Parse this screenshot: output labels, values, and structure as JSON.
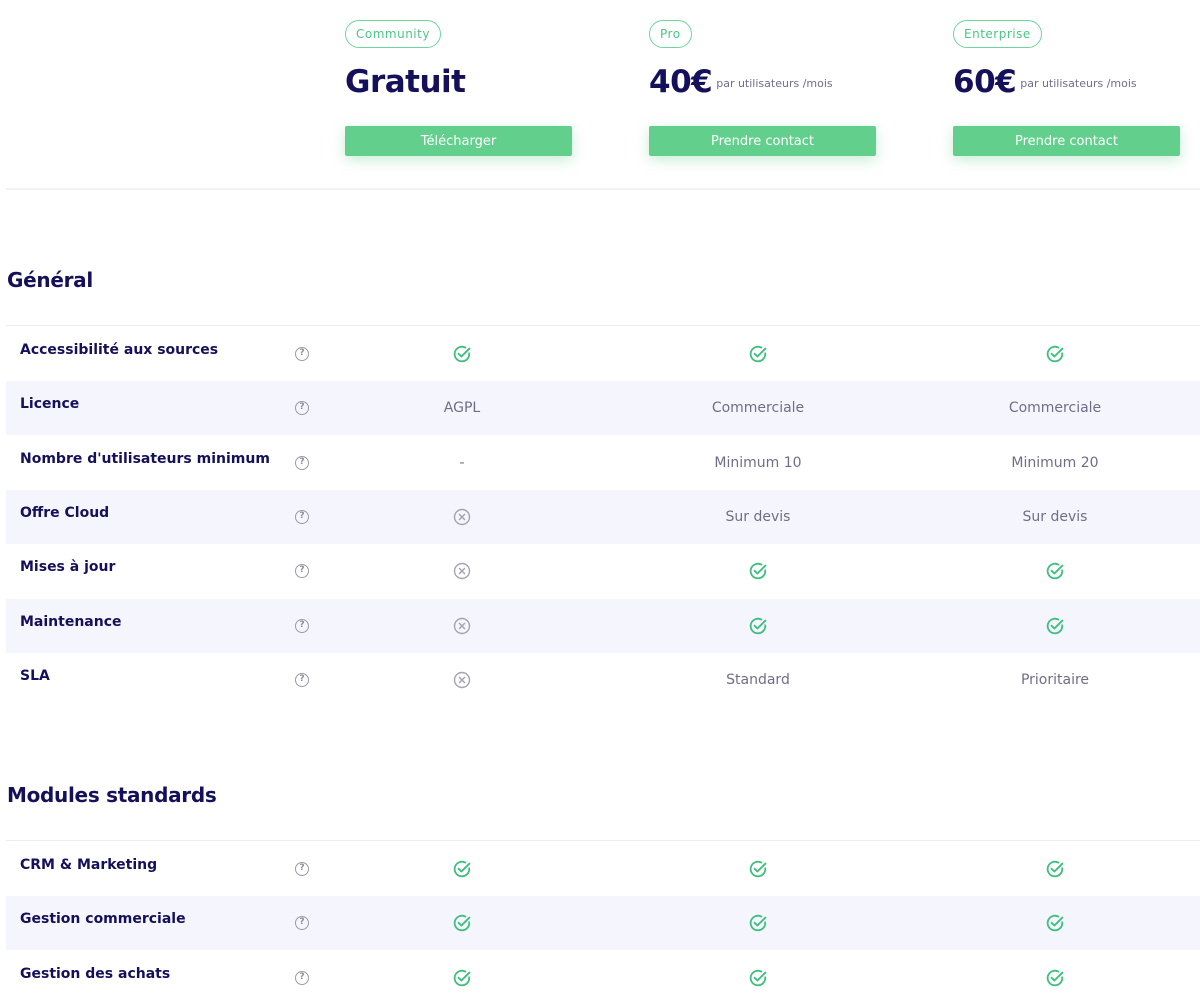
{
  "plans": [
    {
      "badge": "Community",
      "price": "Gratuit",
      "period": "",
      "button": "Télécharger"
    },
    {
      "badge": "Pro",
      "price": "40€",
      "period": "par utilisateurs /mois",
      "button": "Prendre contact"
    },
    {
      "badge": "Enterprise",
      "price": "60€",
      "period": "par utilisateurs /mois",
      "button": "Prendre contact"
    }
  ],
  "sections": [
    {
      "title": "Général",
      "rows": [
        {
          "label": "Accessibilité aux sources",
          "values": [
            "check-icon",
            "check-icon",
            "check-icon"
          ]
        },
        {
          "label": "Licence",
          "values": [
            "AGPL",
            "Commerciale",
            "Commerciale"
          ]
        },
        {
          "label": "Nombre d'utilisateurs minimum",
          "values": [
            "-",
            "Minimum 10",
            "Minimum 20"
          ]
        },
        {
          "label": "Offre Cloud",
          "values": [
            "cross-icon",
            "Sur devis",
            "Sur devis"
          ]
        },
        {
          "label": "Mises à jour",
          "values": [
            "cross-icon",
            "check-icon",
            "check-icon"
          ]
        },
        {
          "label": "Maintenance",
          "values": [
            "cross-icon",
            "check-icon",
            "check-icon"
          ]
        },
        {
          "label": "SLA",
          "values": [
            "cross-icon",
            "Standard",
            "Prioritaire"
          ]
        }
      ]
    },
    {
      "title": "Modules standards",
      "rows": [
        {
          "label": "CRM & Marketing",
          "values": [
            "check-icon",
            "check-icon",
            "check-icon"
          ]
        },
        {
          "label": "Gestion commerciale",
          "values": [
            "check-icon",
            "check-icon",
            "check-icon"
          ]
        },
        {
          "label": "Gestion des achats",
          "values": [
            "check-icon",
            "check-icon",
            "check-icon"
          ]
        }
      ]
    }
  ],
  "help_glyph": "?",
  "colors": {
    "accent": "#62cf8c",
    "check": "#3dbf7d",
    "cross": "#a3a2b0",
    "heading": "#14105a",
    "row_alt": "#f5f5fe"
  }
}
